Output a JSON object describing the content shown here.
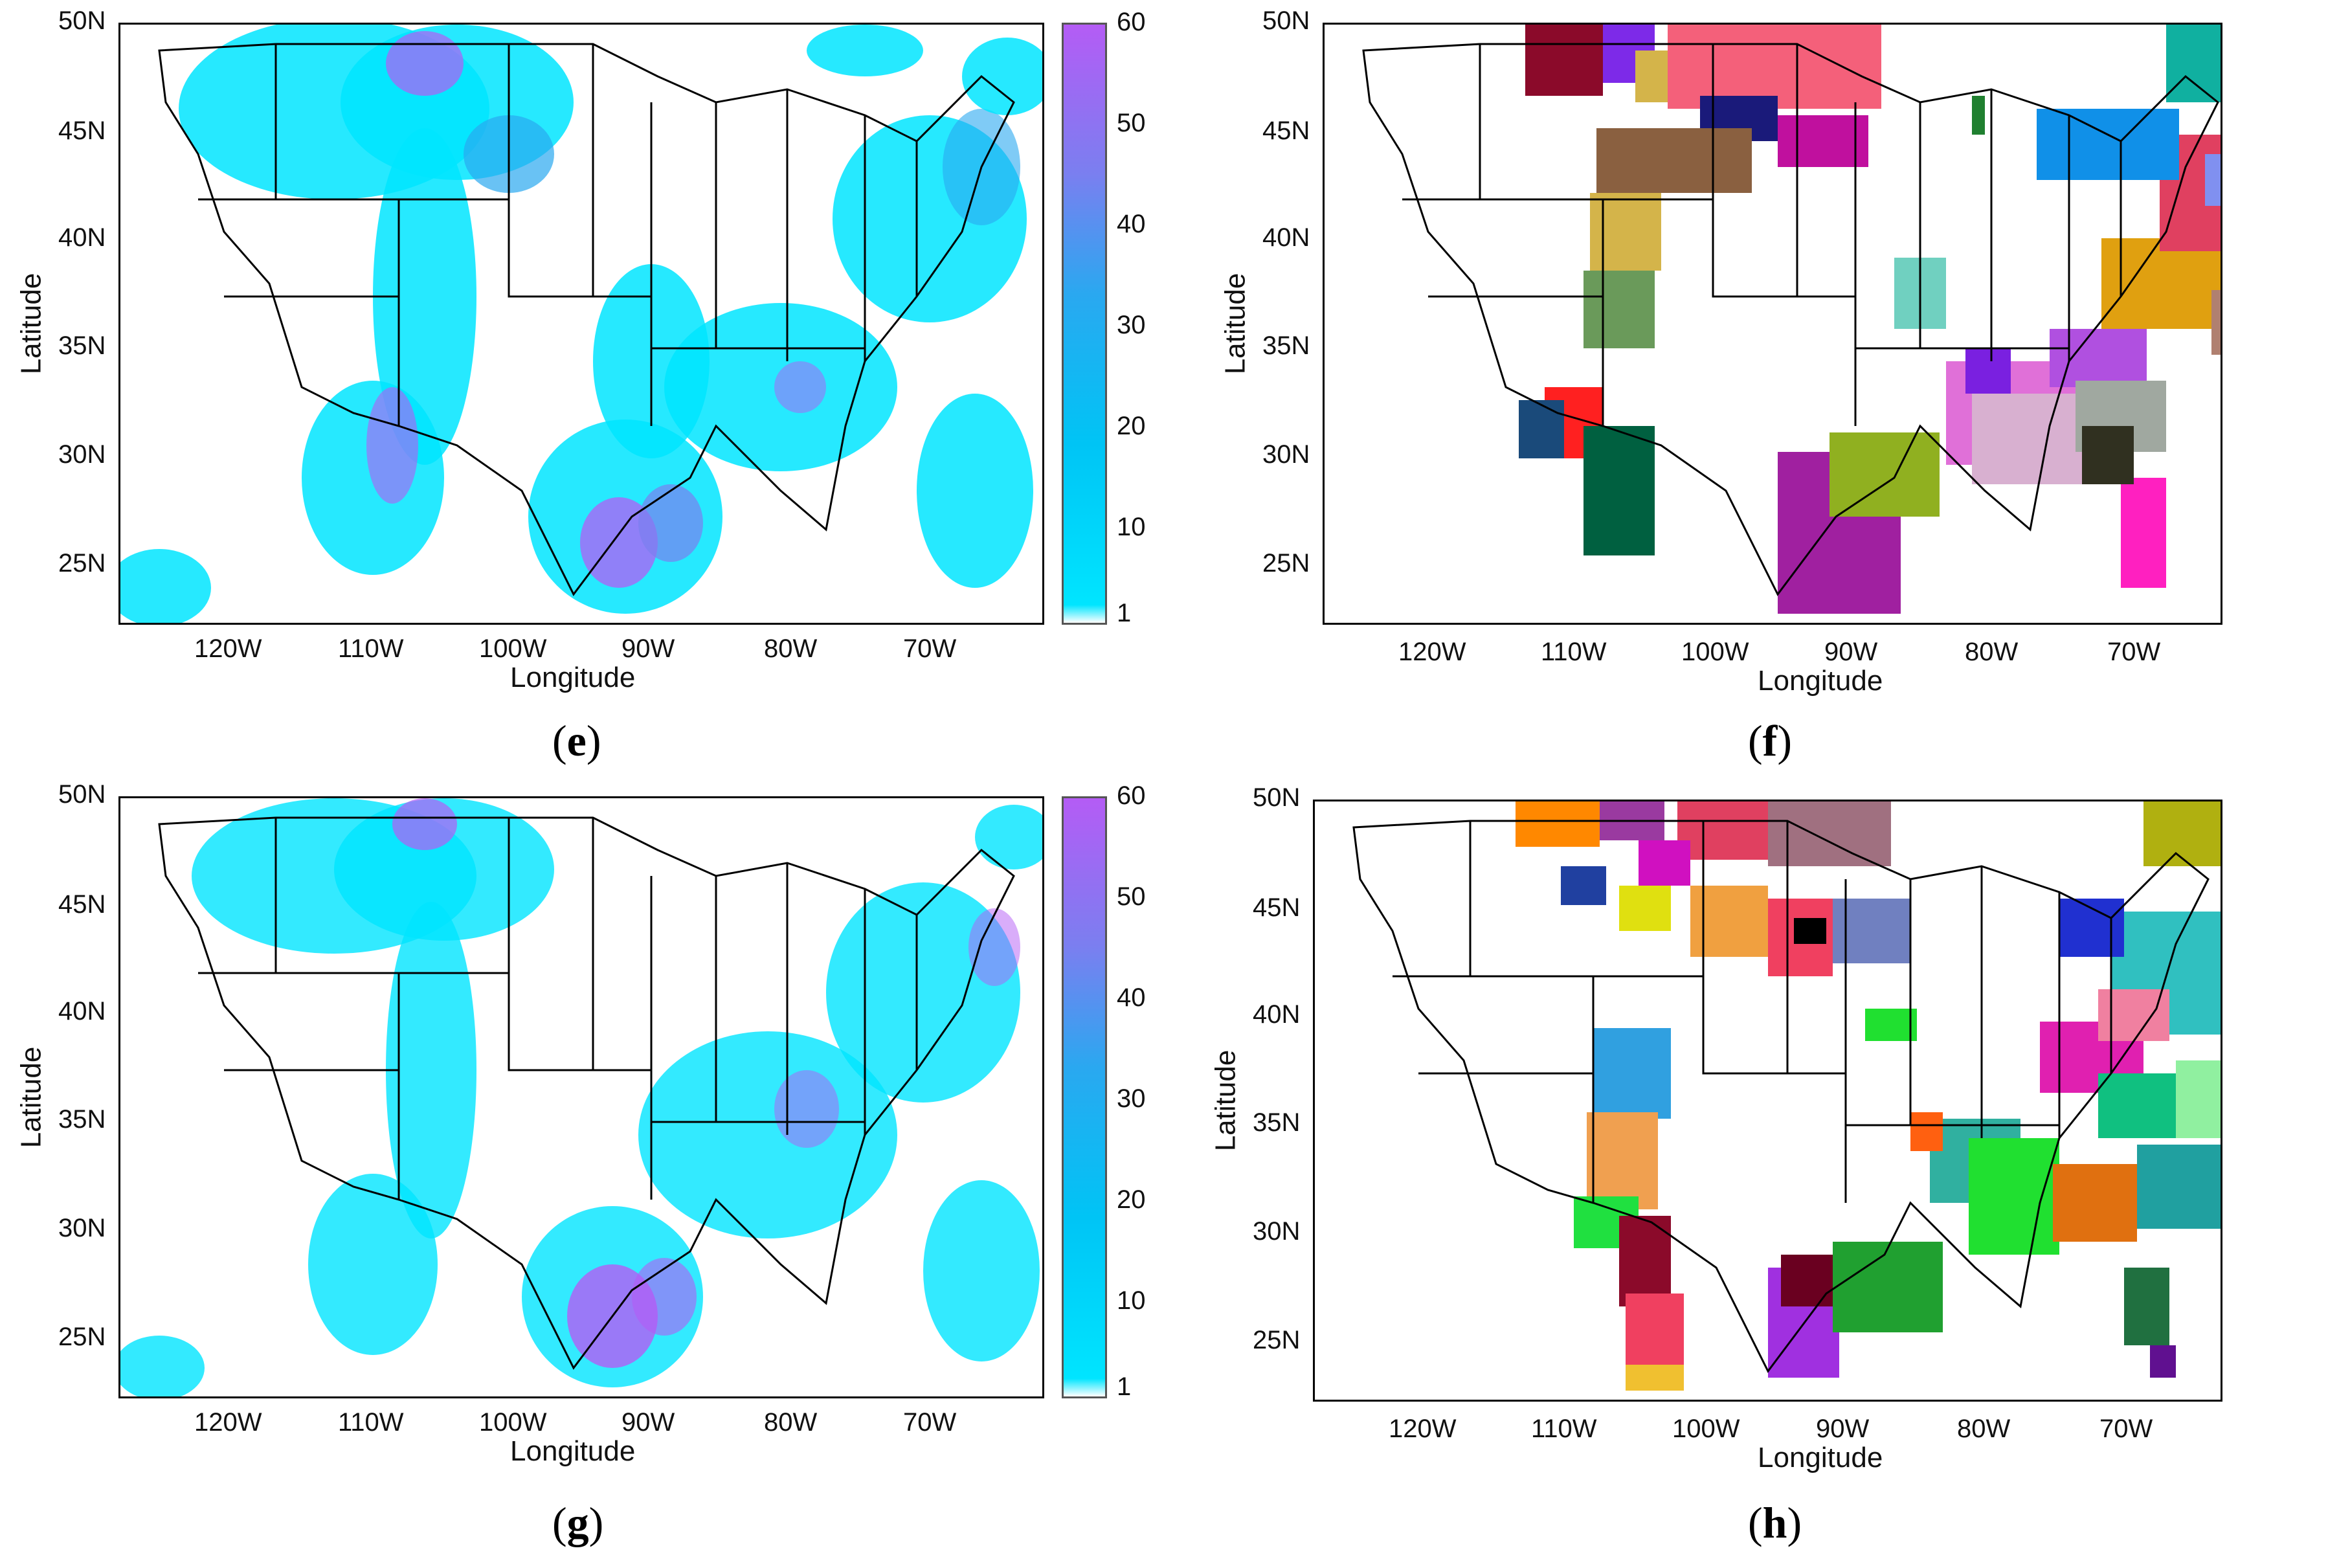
{
  "panels": {
    "e": {
      "tag_open": "(",
      "tag_letter": "e",
      "tag_close": ")",
      "xlabel": "Longitude",
      "ylabel": "Latitude",
      "xticks": [
        "120W",
        "110W",
        "100W",
        "90W",
        "80W",
        "70W"
      ],
      "yticks": [
        "50N",
        "45N",
        "40N",
        "35N",
        "30N",
        "25N"
      ],
      "colorbar": [
        "60",
        "50",
        "40",
        "30",
        "20",
        "10",
        "1"
      ]
    },
    "f": {
      "tag_open": "(",
      "tag_letter": "f",
      "tag_close": ")",
      "xlabel": "Longitude",
      "ylabel": "Latitude",
      "xticks": [
        "120W",
        "110W",
        "100W",
        "90W",
        "80W",
        "70W"
      ],
      "yticks": [
        "50N",
        "45N",
        "40N",
        "35N",
        "30N",
        "25N"
      ]
    },
    "g": {
      "tag_open": "(",
      "tag_letter": "g",
      "tag_close": ")",
      "xlabel": "Longitude",
      "ylabel": "Latitude",
      "xticks": [
        "120W",
        "110W",
        "100W",
        "90W",
        "80W",
        "70W"
      ],
      "yticks": [
        "50N",
        "45N",
        "40N",
        "35N",
        "30N",
        "25N"
      ],
      "colorbar": [
        "60",
        "50",
        "40",
        "30",
        "20",
        "10",
        "1"
      ]
    },
    "h": {
      "tag_open": "(",
      "tag_letter": "h",
      "tag_close": ")",
      "xlabel": "Longitude",
      "ylabel": "Latitude",
      "xticks": [
        "120W",
        "110W",
        "100W",
        "90W",
        "80W",
        "70W"
      ],
      "yticks": [
        "50N",
        "45N",
        "40N",
        "35N",
        "30N",
        "25N"
      ]
    }
  },
  "colors": {
    "precip_low": "#00e5ff",
    "precip_mid": "#2aa8f0",
    "precip_high": "#b45cf5",
    "boundary": "#000000"
  },
  "map_extent": {
    "lon_range": [
      -128,
      -64
    ],
    "lat_range": [
      22.5,
      50
    ]
  }
}
